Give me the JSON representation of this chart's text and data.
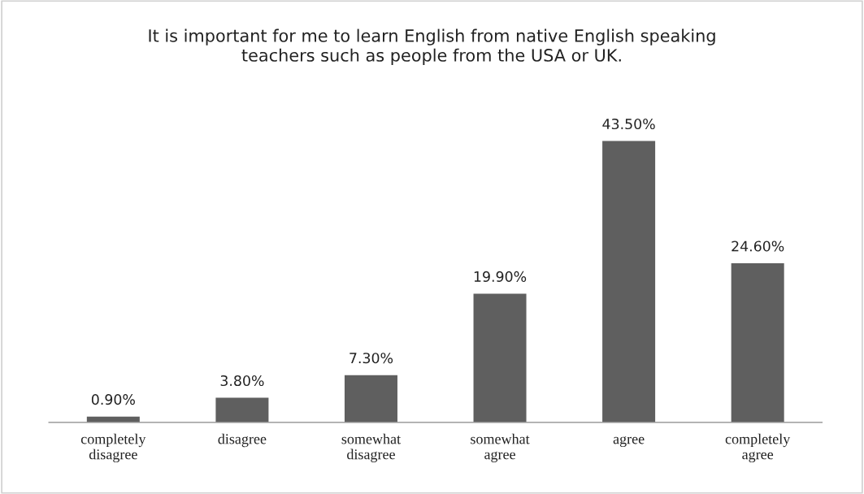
{
  "chart_data": {
    "type": "bar",
    "title": "It is important for me to learn English from native English speaking\nteachers such as people from the USA or UK.",
    "categories": [
      "completely\ndisagree",
      "disagree",
      "somewhat\ndisagree",
      "somewhat\nagree",
      "agree",
      "completely\nagree"
    ],
    "values": [
      0.9,
      3.8,
      7.3,
      19.9,
      43.5,
      24.6
    ],
    "value_labels": [
      "0.90%",
      "3.80%",
      "7.30%",
      "19.90%",
      "43.50%",
      "24.60%"
    ],
    "color": "#5f5f5f",
    "grid": false,
    "legend": false
  }
}
